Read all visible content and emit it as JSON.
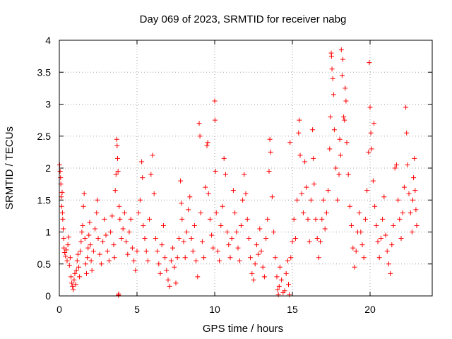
{
  "chart_data": {
    "type": "scatter",
    "title": "Day 069 of 2023, SRMTID for receiver nabg",
    "xlabel": "GPS time / hours",
    "ylabel": "SRMTID / TECUs",
    "xlim": [
      0,
      24
    ],
    "ylim": [
      0,
      4
    ],
    "xticks": [
      0,
      5,
      10,
      15,
      20
    ],
    "yticks": [
      0,
      0.5,
      1,
      1.5,
      2,
      2.5,
      3,
      3.5,
      4
    ],
    "xtick_labels": [
      "0",
      "5",
      "10",
      "15",
      "20"
    ],
    "ytick_labels": [
      "0",
      "0.5",
      "1",
      "1.5",
      "2",
      "2.5",
      "3",
      "3.5",
      "4"
    ],
    "grid": true,
    "marker": "+",
    "color": "#ff0000",
    "series": [
      {
        "name": "SRMTID",
        "points": [
          [
            0.02,
            2.05
          ],
          [
            0.05,
            1.95
          ],
          [
            0.08,
            1.85
          ],
          [
            0.1,
            1.75
          ],
          [
            0.12,
            1.55
          ],
          [
            0.15,
            1.4
          ],
          [
            0.18,
            1.62
          ],
          [
            0.2,
            1.3
          ],
          [
            0.22,
            1.2
          ],
          [
            0.25,
            1.05
          ],
          [
            0.28,
            0.9
          ],
          [
            0.3,
            0.75
          ],
          [
            0.35,
            0.68
          ],
          [
            0.4,
            0.62
          ],
          [
            0.45,
            0.72
          ],
          [
            0.5,
            0.55
          ],
          [
            0.55,
            0.8
          ],
          [
            0.6,
            0.92
          ],
          [
            0.65,
            0.48
          ],
          [
            0.7,
            0.6
          ],
          [
            0.75,
            0.3
          ],
          [
            0.8,
            0.2
          ],
          [
            0.85,
            0.15
          ],
          [
            0.9,
            0.1
          ],
          [
            0.95,
            0.25
          ],
          [
            1.0,
            0.35
          ],
          [
            1.05,
            0.18
          ],
          [
            1.1,
            0.4
          ],
          [
            1.15,
            0.55
          ],
          [
            1.2,
            0.65
          ],
          [
            1.25,
            0.45
          ],
          [
            1.3,
            0.3
          ],
          [
            1.35,
            0.7
          ],
          [
            1.4,
            0.85
          ],
          [
            1.45,
            1.0
          ],
          [
            1.5,
            1.1
          ],
          [
            1.55,
            1.4
          ],
          [
            1.6,
            1.6
          ],
          [
            1.65,
            0.9
          ],
          [
            1.7,
            0.5
          ],
          [
            1.75,
            0.35
          ],
          [
            1.8,
            0.6
          ],
          [
            1.85,
            0.75
          ],
          [
            1.9,
            0.95
          ],
          [
            1.95,
            1.15
          ],
          [
            2.0,
            0.8
          ],
          [
            2.05,
            0.55
          ],
          [
            2.1,
            0.4
          ],
          [
            2.2,
            0.7
          ],
          [
            2.3,
            1.05
          ],
          [
            2.4,
            1.3
          ],
          [
            2.45,
            1.5
          ],
          [
            2.5,
            0.9
          ],
          [
            2.6,
            0.65
          ],
          [
            2.7,
            0.5
          ],
          [
            2.8,
            0.85
          ],
          [
            2.9,
            1.2
          ],
          [
            3.0,
            0.95
          ],
          [
            3.1,
            0.7
          ],
          [
            3.2,
            0.55
          ],
          [
            3.3,
            1.0
          ],
          [
            3.4,
            1.25
          ],
          [
            3.5,
            0.8
          ],
          [
            3.55,
            0.6
          ],
          [
            3.6,
            1.65
          ],
          [
            3.65,
            1.9
          ],
          [
            3.7,
            2.45
          ],
          [
            3.72,
            2.35
          ],
          [
            3.75,
            2.15
          ],
          [
            3.78,
            1.95
          ],
          [
            3.8,
            0.01
          ],
          [
            3.82,
            0.03
          ],
          [
            3.85,
            1.4
          ],
          [
            3.9,
            1.2
          ],
          [
            4.0,
            0.9
          ],
          [
            4.1,
            1.05
          ],
          [
            4.2,
            1.3
          ],
          [
            4.3,
            0.85
          ],
          [
            4.4,
            0.65
          ],
          [
            4.5,
            1.0
          ],
          [
            4.6,
            1.2
          ],
          [
            4.7,
            0.75
          ],
          [
            4.8,
            0.55
          ],
          [
            4.9,
            0.4
          ],
          [
            5.0,
            0.7
          ],
          [
            5.1,
            1.3
          ],
          [
            5.2,
            1.5
          ],
          [
            5.3,
            2.1
          ],
          [
            5.35,
            1.85
          ],
          [
            5.4,
            1.1
          ],
          [
            5.5,
            0.9
          ],
          [
            5.6,
            0.7
          ],
          [
            5.7,
            0.55
          ],
          [
            5.8,
            1.2
          ],
          [
            5.9,
            1.9
          ],
          [
            6.0,
            2.2
          ],
          [
            6.1,
            1.6
          ],
          [
            6.2,
            0.9
          ],
          [
            6.3,
            0.7
          ],
          [
            6.4,
            0.5
          ],
          [
            6.5,
            0.35
          ],
          [
            6.6,
            0.8
          ],
          [
            6.7,
            1.1
          ],
          [
            6.8,
            0.6
          ],
          [
            6.9,
            0.4
          ],
          [
            7.0,
            0.25
          ],
          [
            7.1,
            0.15
          ],
          [
            7.2,
            0.55
          ],
          [
            7.3,
            0.75
          ],
          [
            7.4,
            0.45
          ],
          [
            7.5,
            0.2
          ],
          [
            7.6,
            0.6
          ],
          [
            7.7,
            0.9
          ],
          [
            7.8,
            1.8
          ],
          [
            7.85,
            1.45
          ],
          [
            7.9,
            1.2
          ],
          [
            8.0,
            0.85
          ],
          [
            8.1,
            0.6
          ],
          [
            8.2,
            1.0
          ],
          [
            8.3,
            1.35
          ],
          [
            8.4,
            1.55
          ],
          [
            8.5,
            0.9
          ],
          [
            8.6,
            0.7
          ],
          [
            8.7,
            1.1
          ],
          [
            8.8,
            0.55
          ],
          [
            8.9,
            0.3
          ],
          [
            9.0,
            2.7
          ],
          [
            9.05,
            2.5
          ],
          [
            9.1,
            1.3
          ],
          [
            9.2,
            0.85
          ],
          [
            9.3,
            0.6
          ],
          [
            9.4,
            1.7
          ],
          [
            9.5,
            2.35
          ],
          [
            9.55,
            2.4
          ],
          [
            9.6,
            1.6
          ],
          [
            9.7,
            1.2
          ],
          [
            9.8,
            0.95
          ],
          [
            9.9,
            0.75
          ],
          [
            10.0,
            3.05
          ],
          [
            10.02,
            2.75
          ],
          [
            10.05,
            1.95
          ],
          [
            10.1,
            1.3
          ],
          [
            10.2,
            0.7
          ],
          [
            10.3,
            0.55
          ],
          [
            10.4,
            1.1
          ],
          [
            10.5,
            1.4
          ],
          [
            10.6,
            2.15
          ],
          [
            10.7,
            1.9
          ],
          [
            10.8,
            1.0
          ],
          [
            10.9,
            0.8
          ],
          [
            11.0,
            0.6
          ],
          [
            11.1,
            0.9
          ],
          [
            11.2,
            1.65
          ],
          [
            11.3,
            1.3
          ],
          [
            11.4,
            1.0
          ],
          [
            11.5,
            0.75
          ],
          [
            11.6,
            0.55
          ],
          [
            11.7,
            1.1
          ],
          [
            11.8,
            1.5
          ],
          [
            11.9,
            1.9
          ],
          [
            12.0,
            1.6
          ],
          [
            12.1,
            1.2
          ],
          [
            12.2,
            0.9
          ],
          [
            12.3,
            0.6
          ],
          [
            12.4,
            0.35
          ],
          [
            12.5,
            0.25
          ],
          [
            12.6,
            0.5
          ],
          [
            12.7,
            0.8
          ],
          [
            12.8,
            0.65
          ],
          [
            12.9,
            1.05
          ],
          [
            13.0,
            0.7
          ],
          [
            13.1,
            0.45
          ],
          [
            13.2,
            0.3
          ],
          [
            13.3,
            0.9
          ],
          [
            13.4,
            1.2
          ],
          [
            13.5,
            1.95
          ],
          [
            13.55,
            2.45
          ],
          [
            13.6,
            2.25
          ],
          [
            13.7,
            1.55
          ],
          [
            13.8,
            1.0
          ],
          [
            13.9,
            0.6
          ],
          [
            14.0,
            0.3
          ],
          [
            14.05,
            0.1
          ],
          [
            14.1,
            0.02
          ],
          [
            14.15,
            0.15
          ],
          [
            14.2,
            0.45
          ],
          [
            14.3,
            0.25
          ],
          [
            14.4,
            0.05
          ],
          [
            14.5,
            0.08
          ],
          [
            14.6,
            0.35
          ],
          [
            14.7,
            0.55
          ],
          [
            14.75,
            0.18
          ],
          [
            14.8,
            0.02
          ],
          [
            14.85,
            2.4
          ],
          [
            14.9,
            0.6
          ],
          [
            15.0,
            0.85
          ],
          [
            15.1,
            1.2
          ],
          [
            15.2,
            0.9
          ],
          [
            15.3,
            1.5
          ],
          [
            15.4,
            2.55
          ],
          [
            15.45,
            2.75
          ],
          [
            15.5,
            2.2
          ],
          [
            15.6,
            1.6
          ],
          [
            15.7,
            1.3
          ],
          [
            15.8,
            2.1
          ],
          [
            15.9,
            1.7
          ],
          [
            16.0,
            1.2
          ],
          [
            16.1,
            0.85
          ],
          [
            16.2,
            1.5
          ],
          [
            16.3,
            2.6
          ],
          [
            16.35,
            2.15
          ],
          [
            16.4,
            1.75
          ],
          [
            16.5,
            1.2
          ],
          [
            16.6,
            0.9
          ],
          [
            16.7,
            0.6
          ],
          [
            16.8,
            0.85
          ],
          [
            16.9,
            1.2
          ],
          [
            17.0,
            1.5
          ],
          [
            17.1,
            1.05
          ],
          [
            17.2,
            1.3
          ],
          [
            17.3,
            1.65
          ],
          [
            17.4,
            2.3
          ],
          [
            17.45,
            2.8
          ],
          [
            17.5,
            3.8
          ],
          [
            17.52,
            3.75
          ],
          [
            17.55,
            3.55
          ],
          [
            17.6,
            3.4
          ],
          [
            17.65,
            3.15
          ],
          [
            17.7,
            2.6
          ],
          [
            17.8,
            2.0
          ],
          [
            17.9,
            1.5
          ],
          [
            18.0,
            1.9
          ],
          [
            18.05,
            2.45
          ],
          [
            18.1,
            2.2
          ],
          [
            18.15,
            3.85
          ],
          [
            18.2,
            3.45
          ],
          [
            18.25,
            3.7
          ],
          [
            18.3,
            2.8
          ],
          [
            18.35,
            2.75
          ],
          [
            18.4,
            3.25
          ],
          [
            18.45,
            3.05
          ],
          [
            18.5,
            2.4
          ],
          [
            18.6,
            1.9
          ],
          [
            18.7,
            1.4
          ],
          [
            18.8,
            1.1
          ],
          [
            18.9,
            0.75
          ],
          [
            19.0,
            0.45
          ],
          [
            19.1,
            0.7
          ],
          [
            19.2,
            1.0
          ],
          [
            19.3,
            1.3
          ],
          [
            19.4,
            1.0
          ],
          [
            19.5,
            0.8
          ],
          [
            19.6,
            0.6
          ],
          [
            19.7,
            1.2
          ],
          [
            19.8,
            1.65
          ],
          [
            19.9,
            2.25
          ],
          [
            19.95,
            3.65
          ],
          [
            20.0,
            2.95
          ],
          [
            20.05,
            2.55
          ],
          [
            20.1,
            2.3
          ],
          [
            20.2,
            1.8
          ],
          [
            20.25,
            2.7
          ],
          [
            20.3,
            1.4
          ],
          [
            20.4,
            1.1
          ],
          [
            20.5,
            0.85
          ],
          [
            20.6,
            0.6
          ],
          [
            20.7,
            0.9
          ],
          [
            20.8,
            1.2
          ],
          [
            20.9,
            1.55
          ],
          [
            21.0,
            0.95
          ],
          [
            21.1,
            0.7
          ],
          [
            21.2,
            0.5
          ],
          [
            21.3,
            0.35
          ],
          [
            21.4,
            0.8
          ],
          [
            21.5,
            1.1
          ],
          [
            21.6,
            2.0
          ],
          [
            21.7,
            2.05
          ],
          [
            21.8,
            1.5
          ],
          [
            21.9,
            1.2
          ],
          [
            22.0,
            0.9
          ],
          [
            22.1,
            1.3
          ],
          [
            22.2,
            1.7
          ],
          [
            22.3,
            2.95
          ],
          [
            22.35,
            2.55
          ],
          [
            22.4,
            2.05
          ],
          [
            22.5,
            1.6
          ],
          [
            22.6,
            1.3
          ],
          [
            22.7,
            1.0
          ],
          [
            22.75,
            1.5
          ],
          [
            22.8,
            1.85
          ],
          [
            22.85,
            2.15
          ],
          [
            22.9,
            1.65
          ],
          [
            22.95,
            1.35
          ],
          [
            23.0,
            1.1
          ]
        ]
      }
    ]
  }
}
